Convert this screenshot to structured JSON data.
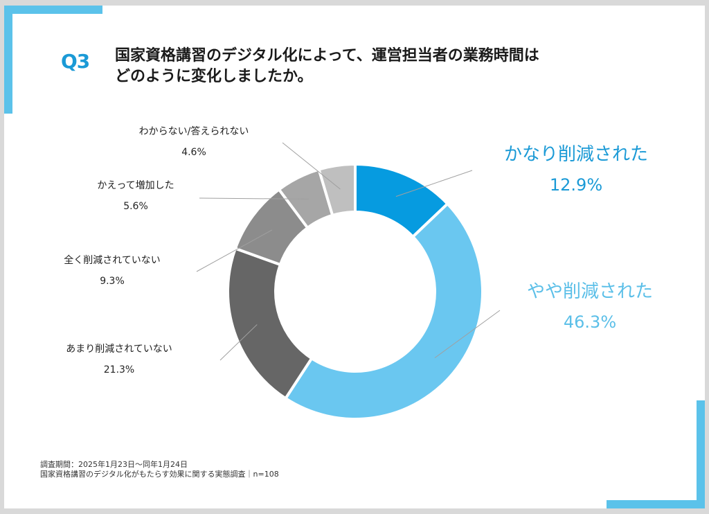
{
  "header": {
    "q_label": "Q3",
    "question_line1": "国家資格講習のデジタル化によって、運営担当者の業務時間は",
    "question_line2": "どのように変化しましたか。"
  },
  "chart_data": {
    "type": "pie",
    "donut": true,
    "slices": [
      {
        "label": "かなり削減された",
        "value": 12.9,
        "value_text": "12.9%",
        "color": "#069be0"
      },
      {
        "label": "やや削減された",
        "value": 46.3,
        "value_text": "46.3%",
        "color": "#6ac7f0"
      },
      {
        "label": "あまり削減されていない",
        "value": 21.3,
        "value_text": "21.3%",
        "color": "#666666"
      },
      {
        "label": "全く削減されていない",
        "value": 9.3,
        "value_text": "9.3%",
        "color": "#8c8c8c"
      },
      {
        "label": "かえって増加した",
        "value": 5.6,
        "value_text": "5.6%",
        "color": "#a6a6a6"
      },
      {
        "label": "わからない/答えられない",
        "value": 4.6,
        "value_text": "4.6%",
        "color": "#bfbfbf"
      }
    ]
  },
  "footer": {
    "line1": "調査期間：2025年1月23日～同年1月24日",
    "line2": "国家資格講習のデジタル化がもたらす効果に関する実態調査｜n=108"
  }
}
